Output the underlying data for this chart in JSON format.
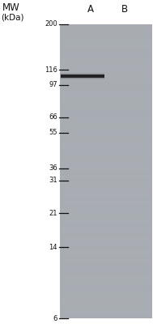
{
  "title_line1": "MW",
  "title_line2": "(kDa)",
  "lane_labels": [
    "A",
    "B"
  ],
  "mw_markers": [
    200,
    116,
    97,
    66,
    55,
    36,
    31,
    21,
    14,
    6
  ],
  "gel_bg_color": "#a8adb5",
  "band_kda": 108,
  "band_color": "#2a2a2a",
  "figure_bg": "#ffffff",
  "marker_tick_color": "#111111",
  "label_color": "#111111"
}
